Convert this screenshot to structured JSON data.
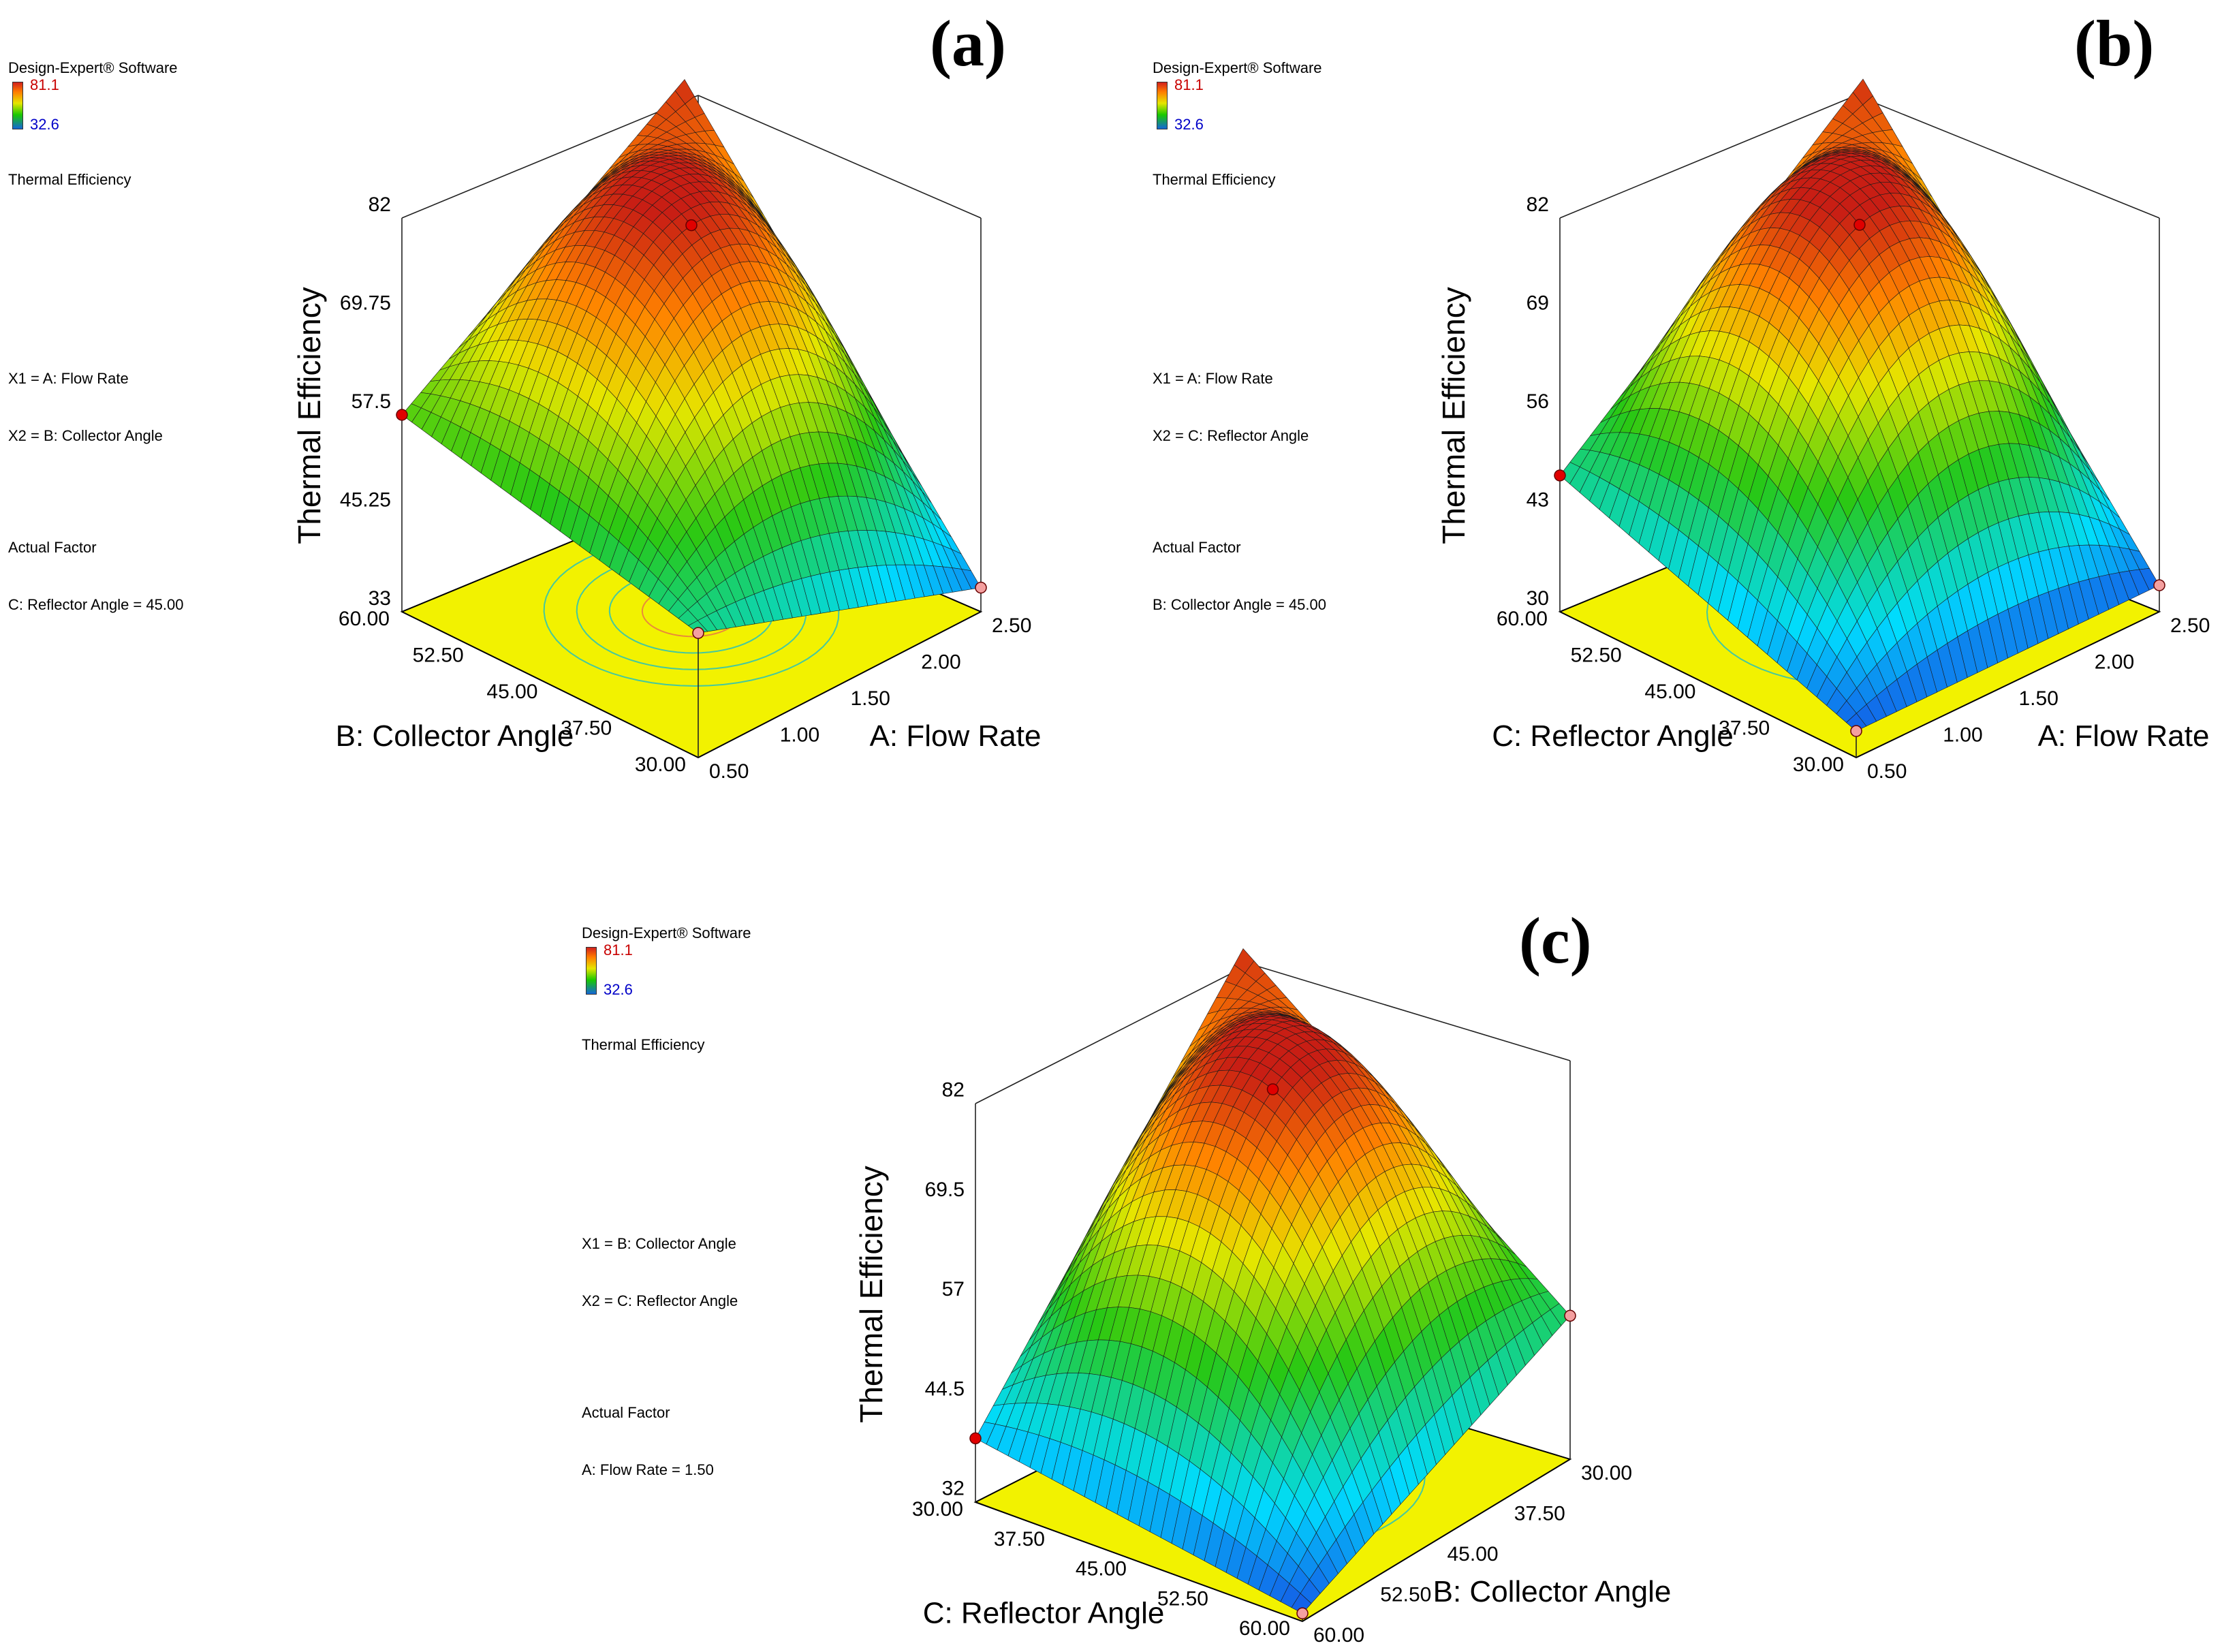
{
  "chart_data": [
    {
      "type": "surface3d",
      "panel_label": "(a)",
      "software": "Design-Expert® Software",
      "response": "Thermal Efficiency",
      "legend_high": "81.1",
      "legend_low": "32.6",
      "x1": "X1 = A: Flow Rate",
      "x2": "X2 = B: Collector Angle",
      "actual_factor_title": "Actual Factor",
      "actual_factor": "C: Reflector Angle = 45.00",
      "zlabel": "Thermal Efficiency",
      "z_ticks": [
        "82",
        "69.75",
        "57.5",
        "45.25",
        "33"
      ],
      "zlim": [
        33,
        82
      ],
      "xlabel": "B: Collector Angle",
      "x_ticks": [
        "60.00",
        "52.50",
        "45.00",
        "37.50",
        "30.00"
      ],
      "ylabel": "A: Flow Rate",
      "y_ticks": [
        "0.50",
        "1.00",
        "1.50",
        "2.00",
        "2.50"
      ],
      "corner_values": [
        57.5,
        48.5,
        36.0,
        81.1
      ],
      "peak": 81.1
    },
    {
      "type": "surface3d",
      "panel_label": "(b)",
      "software": "Design-Expert® Software",
      "response": "Thermal Efficiency",
      "legend_high": "81.1",
      "legend_low": "32.6",
      "x1": "X1 = A: Flow Rate",
      "x2": "X2 = C: Reflector Angle",
      "actual_factor_title": "Actual Factor",
      "actual_factor": "B: Collector Angle = 45.00",
      "zlabel": "Thermal Efficiency",
      "z_ticks": [
        "82",
        "69",
        "56",
        "43",
        "30"
      ],
      "zlim": [
        30,
        82
      ],
      "xlabel": "C: Reflector Angle",
      "x_ticks": [
        "60.00",
        "52.50",
        "45.00",
        "37.50",
        "30.00"
      ],
      "ylabel": "A: Flow Rate",
      "y_ticks": [
        "0.50",
        "1.00",
        "1.50",
        "2.00",
        "2.50"
      ],
      "corner_values": [
        48,
        33.5,
        33.5,
        81.1
      ],
      "peak": 81.1
    },
    {
      "type": "surface3d",
      "panel_label": "(c)",
      "software": "Design-Expert® Software",
      "response": "Thermal Efficiency",
      "legend_high": "81.1",
      "legend_low": "32.6",
      "x1": "X1 = B: Collector Angle",
      "x2": "X2 = C: Reflector Angle",
      "actual_factor_title": "Actual Factor",
      "actual_factor": "A: Flow Rate = 1.50",
      "zlabel": "Thermal Efficiency",
      "z_ticks": [
        "82",
        "69.5",
        "57",
        "44.5",
        "32"
      ],
      "zlim": [
        32,
        82
      ],
      "xlabel": "C: Reflector Angle",
      "x_ticks": [
        "30.00",
        "37.50",
        "45.00",
        "52.50",
        "60.00"
      ],
      "ylabel": "B: Collector Angle",
      "y_ticks": [
        "60.00",
        "52.50",
        "45.00",
        "37.50",
        "30.00"
      ],
      "corner_values": [
        40,
        33,
        50,
        81.1
      ],
      "peak": 81.1
    }
  ]
}
